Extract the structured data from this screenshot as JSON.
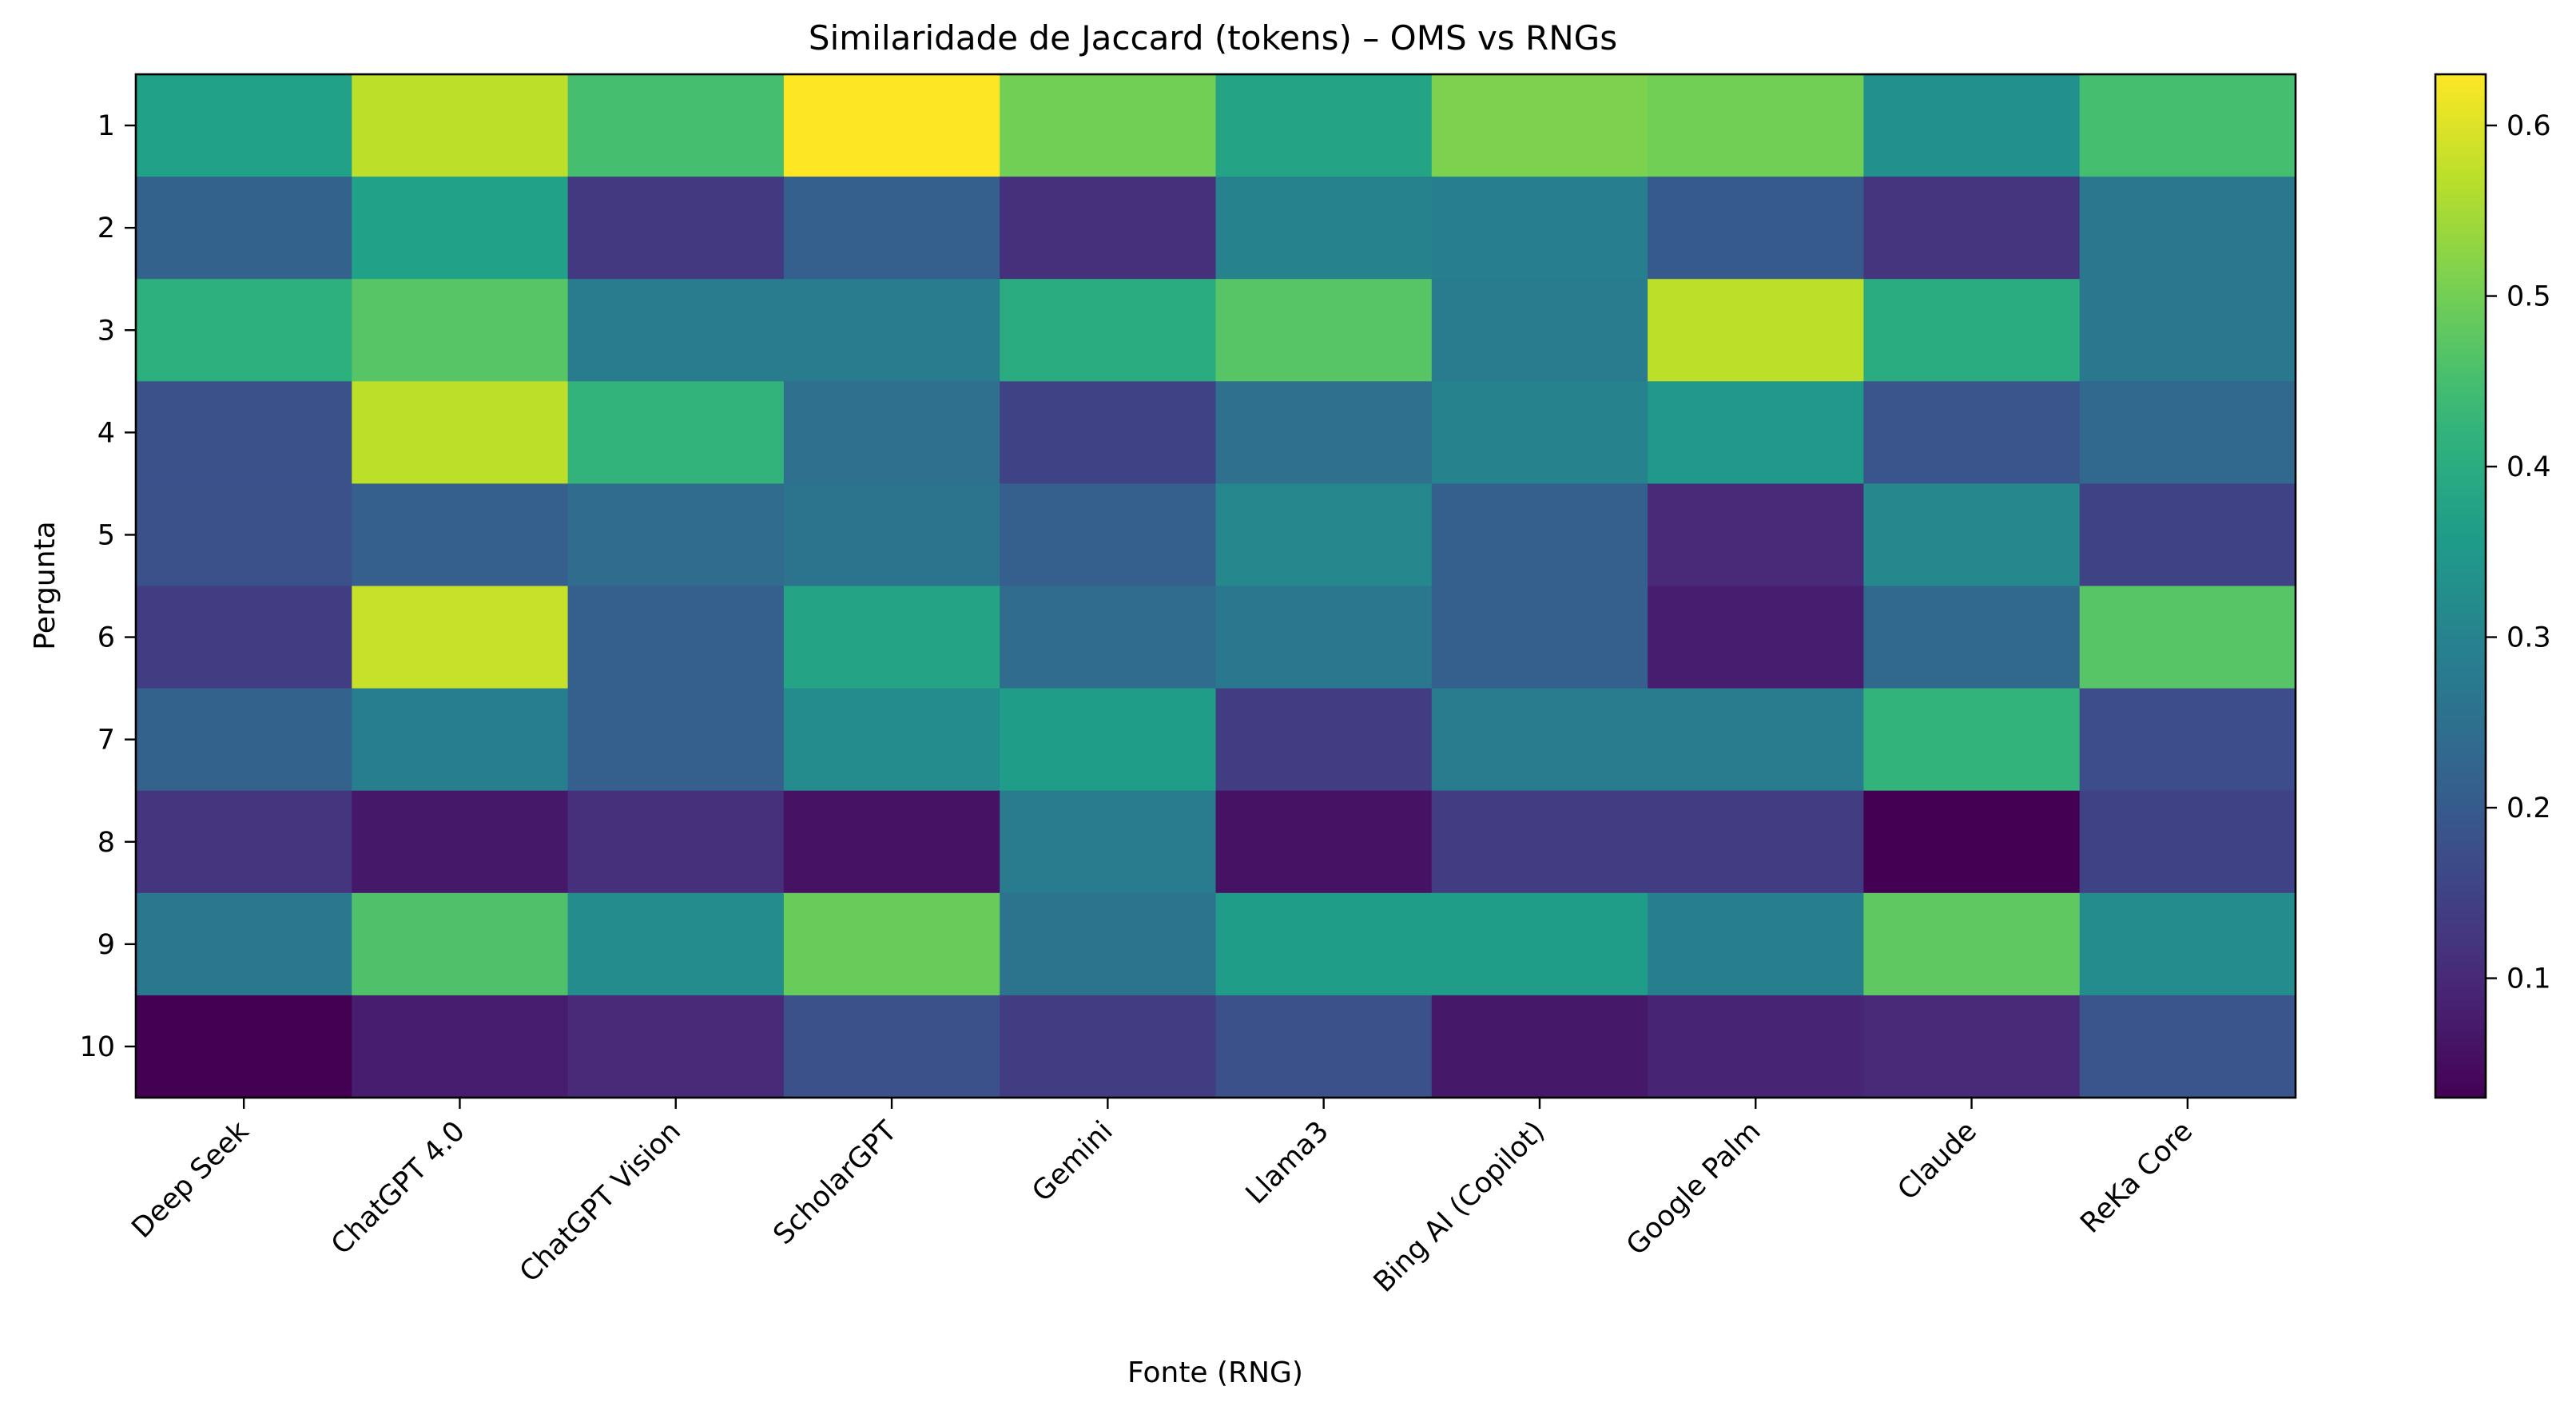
{
  "chart_data": {
    "type": "heatmap",
    "title": "Similaridade de Jaccard (tokens) – OMS vs RNGs",
    "xlabel": "Fonte (RNG)",
    "ylabel": "Pergunta",
    "x_categories": [
      "Deep Seek",
      "ChatGPT 4.0",
      "ChatGPT Vision",
      "ScholarGPT",
      "Gemini",
      "Llama3",
      "Bing AI (Copilot)",
      "Google Palm",
      "Claude",
      "ReKa Core"
    ],
    "y_categories": [
      "1",
      "2",
      "3",
      "4",
      "5",
      "6",
      "7",
      "8",
      "9",
      "10"
    ],
    "values": [
      [
        0.37,
        0.57,
        0.45,
        0.63,
        0.5,
        0.38,
        0.51,
        0.5,
        0.33,
        0.45
      ],
      [
        0.22,
        0.37,
        0.13,
        0.21,
        0.11,
        0.3,
        0.29,
        0.2,
        0.12,
        0.27
      ],
      [
        0.41,
        0.47,
        0.28,
        0.28,
        0.4,
        0.47,
        0.28,
        0.57,
        0.4,
        0.27
      ],
      [
        0.18,
        0.57,
        0.42,
        0.25,
        0.15,
        0.25,
        0.3,
        0.35,
        0.19,
        0.23
      ],
      [
        0.18,
        0.21,
        0.24,
        0.26,
        0.21,
        0.31,
        0.21,
        0.1,
        0.31,
        0.15
      ],
      [
        0.14,
        0.58,
        0.21,
        0.38,
        0.24,
        0.27,
        0.21,
        0.08,
        0.23,
        0.47
      ],
      [
        0.22,
        0.29,
        0.21,
        0.32,
        0.36,
        0.14,
        0.28,
        0.28,
        0.42,
        0.17
      ],
      [
        0.12,
        0.07,
        0.11,
        0.06,
        0.28,
        0.06,
        0.14,
        0.14,
        0.03,
        0.15
      ],
      [
        0.27,
        0.46,
        0.32,
        0.49,
        0.26,
        0.36,
        0.36,
        0.29,
        0.48,
        0.32
      ],
      [
        0.03,
        0.08,
        0.1,
        0.18,
        0.14,
        0.18,
        0.07,
        0.09,
        0.1,
        0.19
      ]
    ],
    "colormap": "viridis",
    "vmin": 0.03,
    "vmax": 0.63,
    "colorbar_ticks": [
      0.1,
      0.2,
      0.3,
      0.4,
      0.5,
      0.6
    ],
    "colorbar_tick_labels": [
      "0.1",
      "0.2",
      "0.3",
      "0.4",
      "0.5",
      "0.6"
    ],
    "grid": false
  }
}
